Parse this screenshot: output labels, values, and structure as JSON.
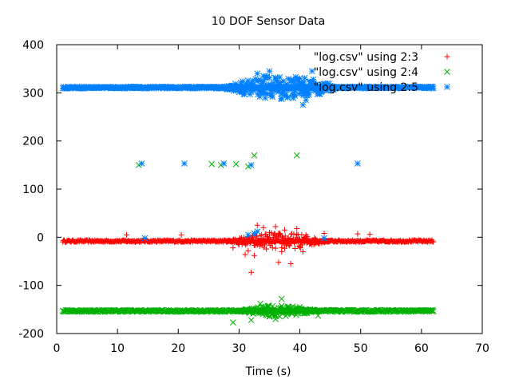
{
  "chart_data": {
    "type": "scatter",
    "title": "10 DOF Sensor Data",
    "xlabel": "Time (s)",
    "ylabel": "",
    "xlim": [
      0,
      70
    ],
    "ylim": [
      -200,
      400
    ],
    "xticks": [
      0,
      10,
      20,
      30,
      40,
      50,
      60,
      70
    ],
    "yticks": [
      -200,
      -100,
      0,
      100,
      200,
      300,
      400
    ],
    "grid": false,
    "legend_position": "top-right",
    "series": [
      {
        "name": "\"log.csv\" using 2:3",
        "marker": "plus",
        "color": "#ff0000",
        "baseline": {
          "x_range": [
            1,
            62
          ],
          "y": -8,
          "jitter": 2
        },
        "noise": {
          "x_range": [
            28,
            45
          ],
          "y": -8,
          "amplitude": 18
        },
        "points": [
          [
            11.5,
            5
          ],
          [
            20.5,
            5
          ],
          [
            29,
            -22
          ],
          [
            30,
            -15
          ],
          [
            31,
            -36
          ],
          [
            31.5,
            -28
          ],
          [
            32,
            -73
          ],
          [
            32.5,
            -38
          ],
          [
            33,
            25
          ],
          [
            34,
            20
          ],
          [
            35,
            10
          ],
          [
            36,
            22
          ],
          [
            36.5,
            -52
          ],
          [
            37,
            -30
          ],
          [
            37.5,
            15
          ],
          [
            38.5,
            -55
          ],
          [
            39.5,
            18
          ],
          [
            40,
            -20
          ],
          [
            40.5,
            -30
          ],
          [
            41,
            5
          ],
          [
            44,
            8
          ],
          [
            49.5,
            7
          ],
          [
            51.5,
            6
          ]
        ]
      },
      {
        "name": "\"log.csv\" using 2:4",
        "marker": "cross",
        "color": "#00b000",
        "baseline": {
          "x_range": [
            1,
            62
          ],
          "y": -153,
          "jitter": 2
        },
        "noise": {
          "x_range": [
            30,
            43
          ],
          "y": -153,
          "amplitude": 12
        },
        "points": [
          [
            13.5,
            150
          ],
          [
            25.5,
            152
          ],
          [
            27,
            150
          ],
          [
            29.5,
            152
          ],
          [
            31.5,
            147
          ],
          [
            32.5,
            170
          ],
          [
            39.5,
            170
          ],
          [
            29,
            -177
          ],
          [
            32,
            -172
          ],
          [
            33.5,
            -138
          ],
          [
            35,
            -165
          ],
          [
            36,
            -170
          ],
          [
            37,
            -128
          ],
          [
            38,
            -147
          ],
          [
            40,
            -145
          ],
          [
            41,
            -150
          ],
          [
            43,
            -163
          ]
        ]
      },
      {
        "name": "\"log.csv\" using 2:5",
        "marker": "star",
        "color": "#0080ff",
        "baseline": {
          "x_range": [
            1,
            62
          ],
          "y": 311,
          "jitter": 2
        },
        "noise": {
          "x_range": [
            27,
            47
          ],
          "y": 311,
          "amplitude": 25
        },
        "points": [
          [
            14,
            153
          ],
          [
            21,
            153
          ],
          [
            27.5,
            153
          ],
          [
            32,
            150
          ],
          [
            49.5,
            153
          ],
          [
            14.5,
            -2
          ],
          [
            31.5,
            5
          ],
          [
            32.5,
            8
          ],
          [
            33,
            12
          ],
          [
            44,
            -2
          ],
          [
            40.5,
            275
          ],
          [
            41,
            285
          ],
          [
            34,
            335
          ],
          [
            35,
            345
          ],
          [
            33,
            340
          ],
          [
            36,
            330
          ],
          [
            37,
            300
          ],
          [
            38,
            290
          ],
          [
            42,
            345
          ],
          [
            39,
            320
          ],
          [
            40,
            330
          ]
        ]
      }
    ]
  }
}
